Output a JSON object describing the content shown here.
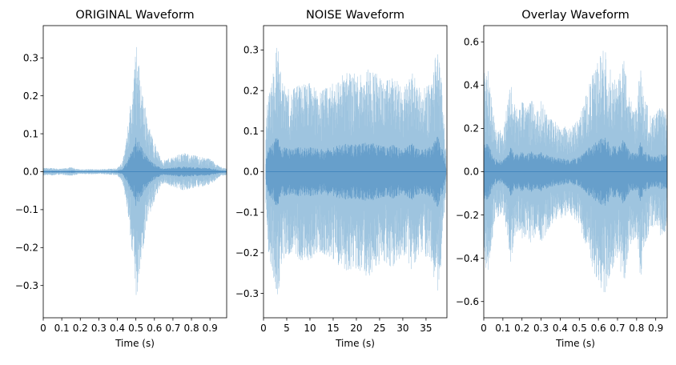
{
  "chart_data": [
    {
      "type": "waveform",
      "title": "ORIGINAL Waveform",
      "xlabel": "Time (s)",
      "ylabel": "",
      "xlim": [
        0,
        0.99
      ],
      "ylim": [
        -0.385,
        0.385
      ],
      "xticks": [
        0,
        0.1,
        0.2,
        0.3,
        0.4,
        0.5,
        0.6,
        0.7,
        0.8,
        0.9
      ],
      "xtick_labels": [
        "0",
        "0.1",
        "0.2",
        "0.3",
        "0.4",
        "0.5",
        "0.6",
        "0.7",
        "0.8",
        "0.9"
      ],
      "yticks": [
        -0.3,
        -0.2,
        -0.1,
        0.0,
        0.1,
        0.2,
        0.3
      ],
      "ytick_labels": [
        "−0.3",
        "−0.2",
        "−0.1",
        "0.0",
        "0.1",
        "0.2",
        "0.3"
      ],
      "envelope": [
        [
          0.0,
          0.01
        ],
        [
          0.05,
          0.01
        ],
        [
          0.1,
          0.008
        ],
        [
          0.15,
          0.012
        ],
        [
          0.2,
          0.006
        ],
        [
          0.25,
          0.007
        ],
        [
          0.3,
          0.006
        ],
        [
          0.35,
          0.008
        ],
        [
          0.4,
          0.01
        ],
        [
          0.43,
          0.03
        ],
        [
          0.45,
          0.09
        ],
        [
          0.47,
          0.18
        ],
        [
          0.49,
          0.25
        ],
        [
          0.5,
          0.35
        ],
        [
          0.52,
          0.27
        ],
        [
          0.54,
          0.2
        ],
        [
          0.57,
          0.12
        ],
        [
          0.6,
          0.08
        ],
        [
          0.63,
          0.04
        ],
        [
          0.65,
          0.03
        ],
        [
          0.7,
          0.04
        ],
        [
          0.75,
          0.05
        ],
        [
          0.8,
          0.045
        ],
        [
          0.85,
          0.04
        ],
        [
          0.9,
          0.035
        ],
        [
          0.95,
          0.015
        ],
        [
          0.99,
          0.008
        ]
      ]
    },
    {
      "type": "waveform",
      "title": "NOISE Waveform",
      "xlabel": "Time (s)",
      "ylabel": "",
      "xlim": [
        0,
        39.5
      ],
      "ylim": [
        -0.36,
        0.36
      ],
      "xticks": [
        0,
        5,
        10,
        15,
        20,
        25,
        30,
        35
      ],
      "xtick_labels": [
        "0",
        "5",
        "10",
        "15",
        "20",
        "25",
        "30",
        "35"
      ],
      "yticks": [
        -0.3,
        -0.2,
        -0.1,
        0.0,
        0.1,
        0.2,
        0.3
      ],
      "ytick_labels": [
        "−0.3",
        "−0.2",
        "−0.1",
        "0.0",
        "0.1",
        "0.2",
        "0.3"
      ],
      "envelope": [
        [
          0.5,
          0.12
        ],
        [
          1,
          0.2
        ],
        [
          2,
          0.25
        ],
        [
          3,
          0.32
        ],
        [
          4,
          0.22
        ],
        [
          6,
          0.2
        ],
        [
          8,
          0.22
        ],
        [
          10,
          0.22
        ],
        [
          12,
          0.2
        ],
        [
          14,
          0.21
        ],
        [
          16,
          0.23
        ],
        [
          18,
          0.25
        ],
        [
          20,
          0.24
        ],
        [
          22,
          0.26
        ],
        [
          24,
          0.25
        ],
        [
          26,
          0.22
        ],
        [
          28,
          0.24
        ],
        [
          30,
          0.2
        ],
        [
          32,
          0.25
        ],
        [
          34,
          0.2
        ],
        [
          36,
          0.22
        ],
        [
          37.5,
          0.32
        ],
        [
          38.5,
          0.2
        ],
        [
          39.3,
          0.05
        ]
      ]
    },
    {
      "type": "waveform",
      "title": "Overlay Waveform",
      "xlabel": "Time (s)",
      "ylabel": "",
      "xlim": [
        0,
        0.96
      ],
      "ylim": [
        -0.675,
        0.675
      ],
      "xticks": [
        0,
        0.1,
        0.2,
        0.3,
        0.4,
        0.5,
        0.6,
        0.7,
        0.8,
        0.9
      ],
      "xtick_labels": [
        "0",
        "0.1",
        "0.2",
        "0.3",
        "0.4",
        "0.5",
        "0.6",
        "0.7",
        "0.8",
        "0.9"
      ],
      "yticks": [
        -0.6,
        -0.4,
        -0.2,
        0.0,
        0.2,
        0.4,
        0.6
      ],
      "ytick_labels": [
        "−0.6",
        "−0.4",
        "−0.2",
        "0.0",
        "0.2",
        "0.4",
        "0.6"
      ],
      "envelope": [
        [
          0.0,
          0.45
        ],
        [
          0.02,
          0.48
        ],
        [
          0.04,
          0.35
        ],
        [
          0.06,
          0.2
        ],
        [
          0.08,
          0.22
        ],
        [
          0.1,
          0.18
        ],
        [
          0.12,
          0.3
        ],
        [
          0.14,
          0.42
        ],
        [
          0.16,
          0.32
        ],
        [
          0.18,
          0.28
        ],
        [
          0.2,
          0.33
        ],
        [
          0.22,
          0.3
        ],
        [
          0.25,
          0.34
        ],
        [
          0.28,
          0.28
        ],
        [
          0.3,
          0.33
        ],
        [
          0.35,
          0.25
        ],
        [
          0.4,
          0.22
        ],
        [
          0.45,
          0.2
        ],
        [
          0.5,
          0.25
        ],
        [
          0.55,
          0.4
        ],
        [
          0.6,
          0.52
        ],
        [
          0.63,
          0.58
        ],
        [
          0.66,
          0.48
        ],
        [
          0.7,
          0.4
        ],
        [
          0.73,
          0.55
        ],
        [
          0.76,
          0.35
        ],
        [
          0.8,
          0.3
        ],
        [
          0.82,
          0.5
        ],
        [
          0.84,
          0.35
        ],
        [
          0.88,
          0.25
        ],
        [
          0.92,
          0.3
        ],
        [
          0.96,
          0.28
        ]
      ]
    }
  ],
  "colors": {
    "wave_fill": "#4f93c5",
    "wave_core": "#2f7ab8"
  }
}
